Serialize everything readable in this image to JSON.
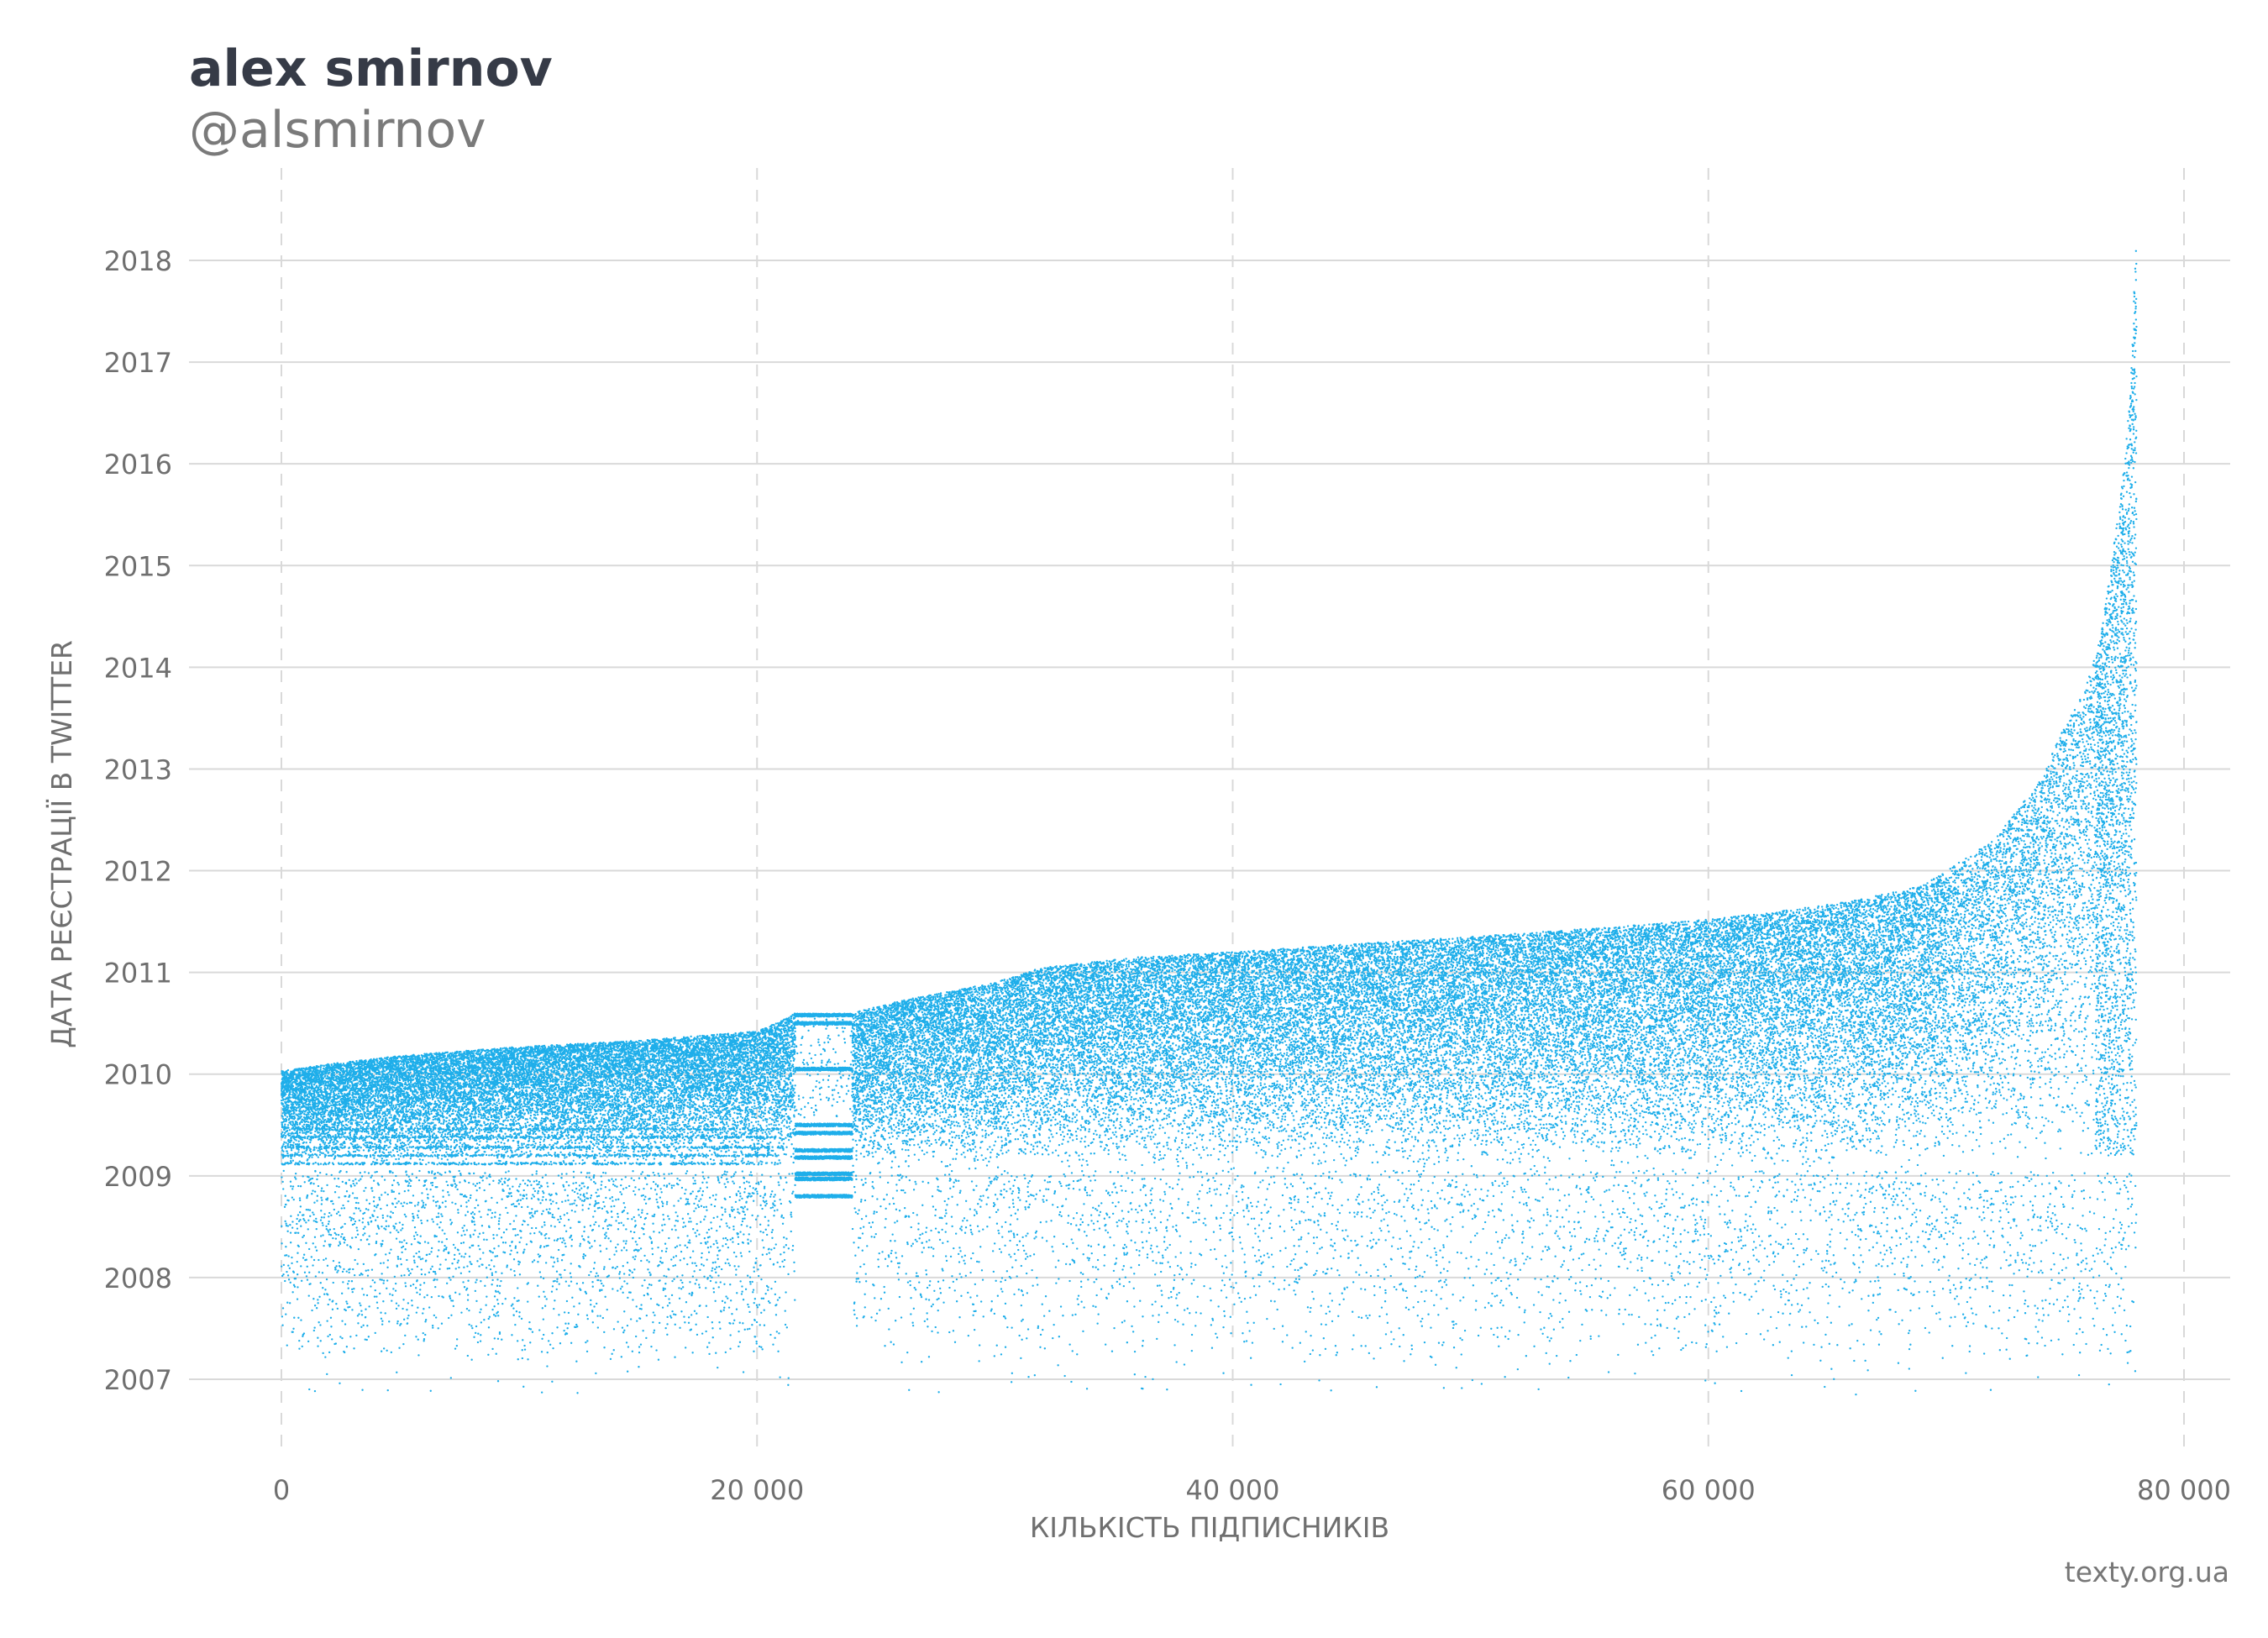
{
  "title": "alex smirnov",
  "subtitle": "@alsmirnov",
  "credit": "texty.org.ua",
  "chart_data": {
    "type": "scatter",
    "xlabel": "КІЛЬКІСТЬ ПІДПИСНИКІВ",
    "ylabel": "ДАТА РЕЄСТРАЦІЇ В TWITTER",
    "xlim": [
      -4000,
      82000
    ],
    "ylim": [
      2006.2,
      2018.5
    ],
    "x_ticks": [
      0,
      20000,
      40000,
      60000,
      80000
    ],
    "x_tick_labels": [
      "0",
      "20 000",
      "40 000",
      "60 000",
      "80 000"
    ],
    "y_ticks": [
      2007,
      2008,
      2009,
      2010,
      2011,
      2012,
      2013,
      2014,
      2015,
      2016,
      2017,
      2018
    ],
    "y_tick_labels": [
      "2007",
      "2008",
      "2009",
      "2010",
      "2011",
      "2012",
      "2013",
      "2014",
      "2015",
      "2016",
      "2017",
      "2018"
    ],
    "grid": {
      "x": "dashed",
      "y": "solid"
    },
    "point_color": "#1eaeea",
    "n_points": 78000,
    "upper_envelope": [
      [
        0,
        2010.03
      ],
      [
        2000,
        2010.1
      ],
      [
        5000,
        2010.18
      ],
      [
        10000,
        2010.27
      ],
      [
        15000,
        2010.33
      ],
      [
        20000,
        2010.42
      ],
      [
        21000,
        2010.52
      ],
      [
        21600,
        2010.6
      ],
      [
        24000,
        2010.6
      ],
      [
        26000,
        2010.72
      ],
      [
        30000,
        2010.9
      ],
      [
        32000,
        2011.05
      ],
      [
        36000,
        2011.15
      ],
      [
        40000,
        2011.2
      ],
      [
        45000,
        2011.28
      ],
      [
        50000,
        2011.35
      ],
      [
        55000,
        2011.43
      ],
      [
        60000,
        2011.52
      ],
      [
        63000,
        2011.6
      ],
      [
        66000,
        2011.7
      ],
      [
        69000,
        2011.85
      ],
      [
        70000,
        2012.0
      ],
      [
        71000,
        2012.15
      ],
      [
        72000,
        2012.3
      ],
      [
        73000,
        2012.6
      ],
      [
        74000,
        2012.9
      ],
      [
        75000,
        2013.45
      ],
      [
        75800,
        2013.75
      ],
      [
        76500,
        2014.3
      ],
      [
        77000,
        2015.1
      ],
      [
        77500,
        2016.0
      ],
      [
        77800,
        2017.0
      ],
      [
        78000,
        2018.35
      ]
    ]
  }
}
